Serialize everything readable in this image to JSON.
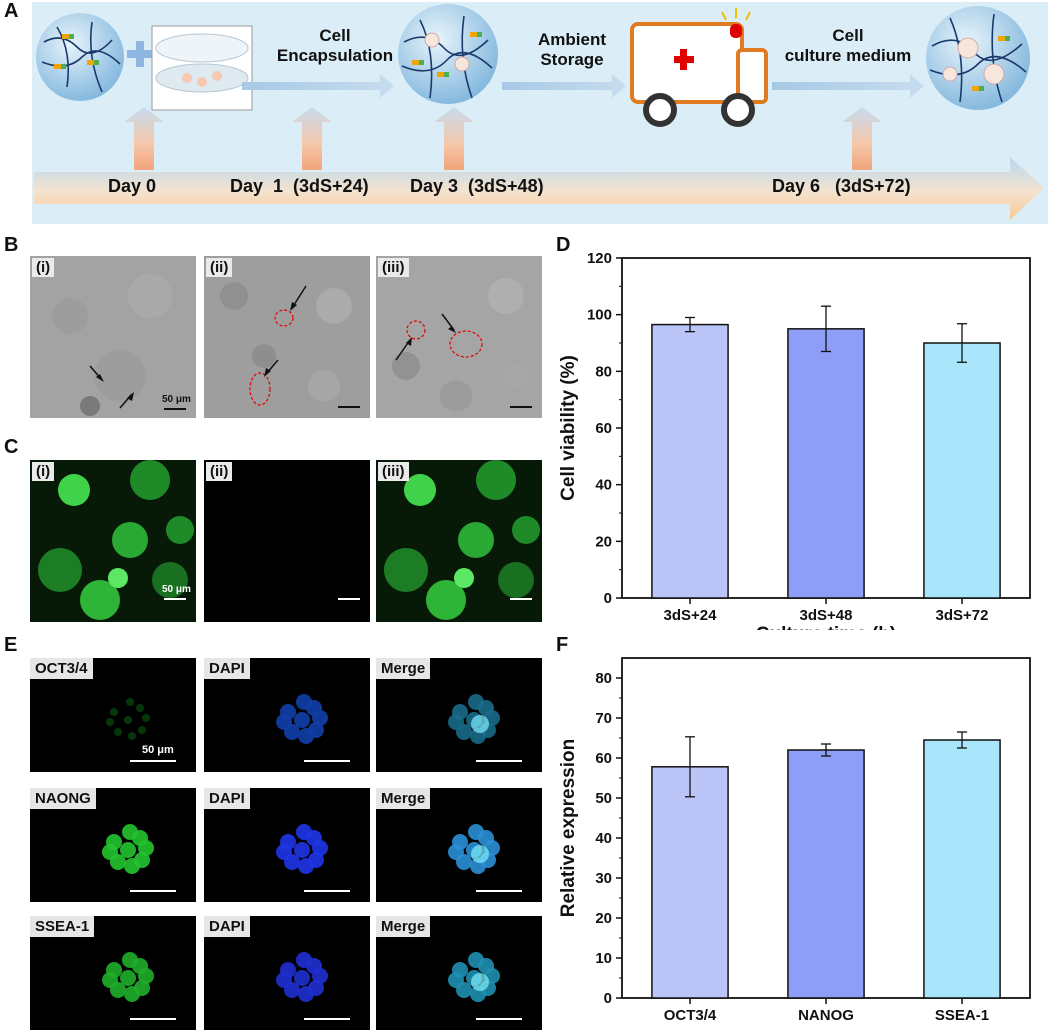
{
  "panels": {
    "a": "A",
    "b": "B",
    "c": "C",
    "d": "D",
    "e": "E",
    "f": "F"
  },
  "timeline": {
    "steps": {
      "encapsulation": [
        "Cell",
        "Encapsulation"
      ],
      "storage": [
        "Ambient",
        "Storage"
      ],
      "medium": [
        "Cell",
        "culture medium"
      ]
    },
    "days": {
      "d0": "Day 0",
      "d1": "Day  1  (3dS+24)",
      "d3": "Day 3  (3dS+48)",
      "d6": "Day 6   (3dS+72)"
    }
  },
  "brightfield": {
    "tags": [
      "(i)",
      "(ii)",
      "(iii)"
    ],
    "scale": "50 μm"
  },
  "fluorescence": {
    "tags": [
      "(i)",
      "(ii)",
      "(iii)"
    ],
    "scale": "50 μm"
  },
  "immuno": {
    "rows": [
      {
        "marker": "OCT3/4",
        "dapi": "DAPI",
        "merge": "Merge"
      },
      {
        "marker": "NAONG",
        "dapi": "DAPI",
        "merge": "Merge"
      },
      {
        "marker": "SSEA-1",
        "dapi": "DAPI",
        "merge": "Merge"
      }
    ],
    "scale": "50 μm"
  },
  "chart_data": [
    {
      "type": "bar",
      "panel": "D",
      "categories": [
        "3dS+24",
        "3dS+48",
        "3dS+72"
      ],
      "values": [
        96.5,
        95,
        90
      ],
      "errors": [
        2.5,
        8,
        6.8
      ],
      "colors": [
        "#bcc5f7",
        "#8e9ef7",
        "#a9e6fb"
      ],
      "xlabel": "Culture time (h)",
      "ylabel": "Cell viability (%)",
      "ylim": [
        0,
        120
      ],
      "yticks": [
        0,
        20,
        40,
        60,
        80,
        100,
        120
      ]
    },
    {
      "type": "bar",
      "panel": "F",
      "categories": [
        "OCT3/4",
        "NANOG",
        "SSEA-1"
      ],
      "values": [
        57.8,
        62,
        64.5
      ],
      "errors": [
        7.5,
        1.5,
        2
      ],
      "colors": [
        "#bcc5f7",
        "#8e9ef7",
        "#a9e6fb"
      ],
      "xlabel": "",
      "ylabel": "Relative expression",
      "ylim": [
        0,
        85
      ],
      "yticks": [
        0,
        10,
        20,
        30,
        40,
        50,
        60,
        70,
        80
      ]
    }
  ]
}
